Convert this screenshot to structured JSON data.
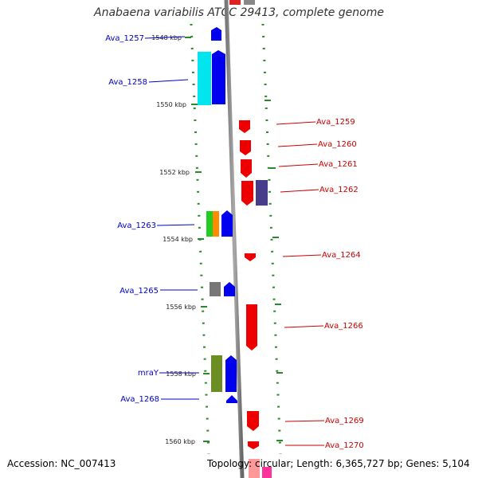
{
  "title": "Anabaena variabilis ATCC 29413, complete genome",
  "accession": "Accession: NC_007413",
  "topology": "Topology: circular; Length: 6,365,727 bp; Genes: 5,104",
  "scale": {
    "labels": [
      "1548 kbp",
      "1550 kbp",
      "1552 kbp",
      "1554 kbp",
      "1556 kbp",
      "1558 kbp",
      "1560 kbp"
    ]
  },
  "genes_left": [
    {
      "name": "Ava_1257",
      "color": "#0000cc"
    },
    {
      "name": "Ava_1258",
      "color": "#0000cc"
    },
    {
      "name": "Ava_1263",
      "color": "#0000cc"
    },
    {
      "name": "Ava_1265",
      "color": "#0000cc"
    },
    {
      "name": "mraY",
      "color": "#0000cc"
    },
    {
      "name": "Ava_1268",
      "color": "#0000cc"
    }
  ],
  "genes_right": [
    {
      "name": "Ava_1259",
      "color": "#cc0000"
    },
    {
      "name": "Ava_1260",
      "color": "#cc0000"
    },
    {
      "name": "Ava_1261",
      "color": "#cc0000"
    },
    {
      "name": "Ava_1262",
      "color": "#cc0000"
    },
    {
      "name": "Ava_1264",
      "color": "#cc0000"
    },
    {
      "name": "Ava_1266",
      "color": "#cc0000"
    },
    {
      "name": "Ava_1269",
      "color": "#cc0000"
    },
    {
      "name": "Ava_1270",
      "color": "#cc0000"
    }
  ]
}
